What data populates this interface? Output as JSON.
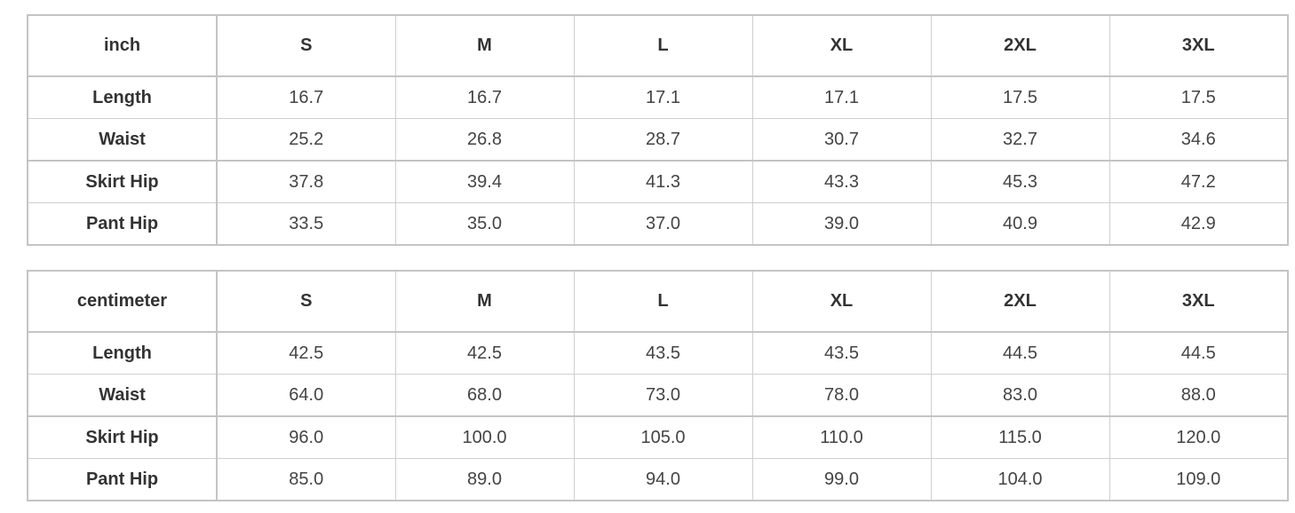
{
  "sizes": [
    "S",
    "M",
    "L",
    "XL",
    "2XL",
    "3XL"
  ],
  "inch_table": {
    "unit_label": "inch",
    "rows": [
      {
        "label": "Length",
        "values": [
          "16.7",
          "16.7",
          "17.1",
          "17.1",
          "17.5",
          "17.5"
        ]
      },
      {
        "label": "Waist",
        "values": [
          "25.2",
          "26.8",
          "28.7",
          "30.7",
          "32.7",
          "34.6"
        ]
      },
      {
        "label": "Skirt Hip",
        "values": [
          "37.8",
          "39.4",
          "41.3",
          "43.3",
          "45.3",
          "47.2"
        ]
      },
      {
        "label": "Pant Hip",
        "values": [
          "33.5",
          "35.0",
          "37.0",
          "39.0",
          "40.9",
          "42.9"
        ]
      }
    ]
  },
  "cm_table": {
    "unit_label": "centimeter",
    "rows": [
      {
        "label": "Length",
        "values": [
          "42.5",
          "42.5",
          "43.5",
          "43.5",
          "44.5",
          "44.5"
        ]
      },
      {
        "label": "Waist",
        "values": [
          "64.0",
          "68.0",
          "73.0",
          "78.0",
          "83.0",
          "88.0"
        ]
      },
      {
        "label": "Skirt Hip",
        "values": [
          "96.0",
          "100.0",
          "105.0",
          "110.0",
          "115.0",
          "120.0"
        ]
      },
      {
        "label": "Pant Hip",
        "values": [
          "85.0",
          "89.0",
          "94.0",
          "99.0",
          "104.0",
          "109.0"
        ]
      }
    ]
  }
}
